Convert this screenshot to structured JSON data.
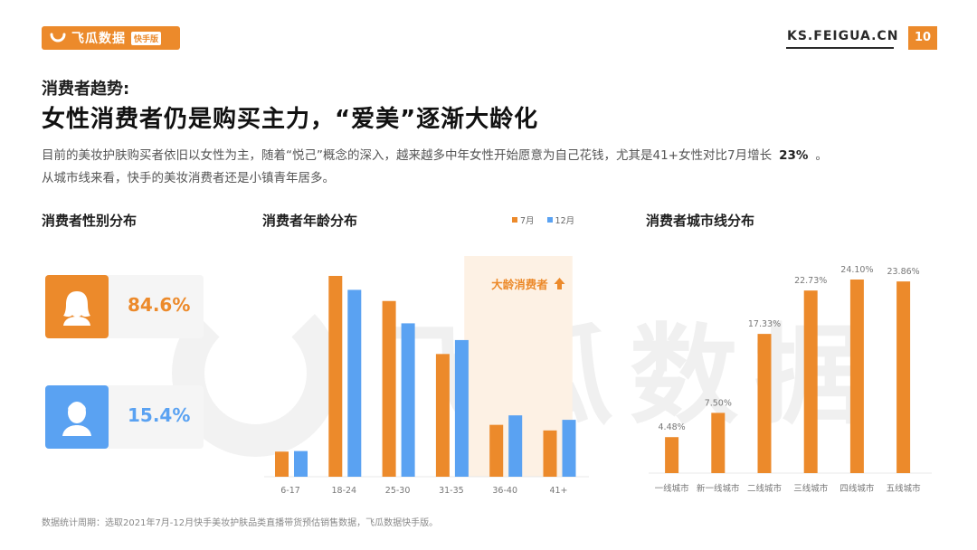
{
  "header": {
    "brand": "飞瓜数据",
    "badge": "快手版",
    "site": "KS.FEIGUA.CN",
    "page": "10"
  },
  "kicker": "消费者趋势:",
  "title": "女性消费者仍是购买主力，“爱美”逐渐大龄化",
  "desc": {
    "line1": "目前的美妆护肤购买者依旧以女性为主，随着“悦己”概念的深入，越来越多中年女性开始愿意为自己花钱，尤其是41+女性对比7月增长",
    "highlight": "23%",
    "line1_end": "。",
    "line2": "从城市线来看，快手的美妆消费者还是小镇青年居多。"
  },
  "watermark": "飞瓜数据",
  "gender": {
    "title": "消费者性别分布",
    "female": {
      "pct": "84.6%",
      "icon": "female-person-icon"
    },
    "male": {
      "pct": "15.4%",
      "icon": "male-person-icon"
    }
  },
  "colors": {
    "orange": "#ec8a2b",
    "blue": "#5aa2f2",
    "highlight_bg": "#fdf1e4"
  },
  "chart_data": [
    {
      "type": "bar",
      "title": "消费者年龄分布",
      "categories": [
        "6-17",
        "18-24",
        "25-30",
        "31-35",
        "36-40",
        "41+"
      ],
      "series": [
        {
          "name": "7月",
          "values": [
            4.5,
            36.0,
            31.5,
            22.0,
            9.3,
            8.3
          ]
        },
        {
          "name": "12月",
          "values": [
            4.6,
            33.5,
            27.5,
            24.5,
            11.0,
            10.2
          ]
        }
      ],
      "annotation": "大龄消费者",
      "annotation_icon": "arrow-up-icon",
      "highlight_categories": [
        "36-40",
        "41+"
      ],
      "legend_position": "top-right",
      "grid": false
    },
    {
      "type": "bar",
      "title": "消费者城市线分布",
      "categories": [
        "一线城市",
        "新一线城市",
        "二线城市",
        "三线城市",
        "四线城市",
        "五线城市"
      ],
      "values": [
        4.48,
        7.5,
        17.33,
        22.73,
        24.1,
        23.86
      ],
      "data_labels": [
        "4.48%",
        "7.50%",
        "17.33%",
        "22.73%",
        "24.10%",
        "23.86%"
      ],
      "grid": false
    }
  ],
  "footnote": "数据统计周期：选取2021年7月-12月快手美妆护肤品类直播带货预估销售数据，飞瓜数据快手版。"
}
